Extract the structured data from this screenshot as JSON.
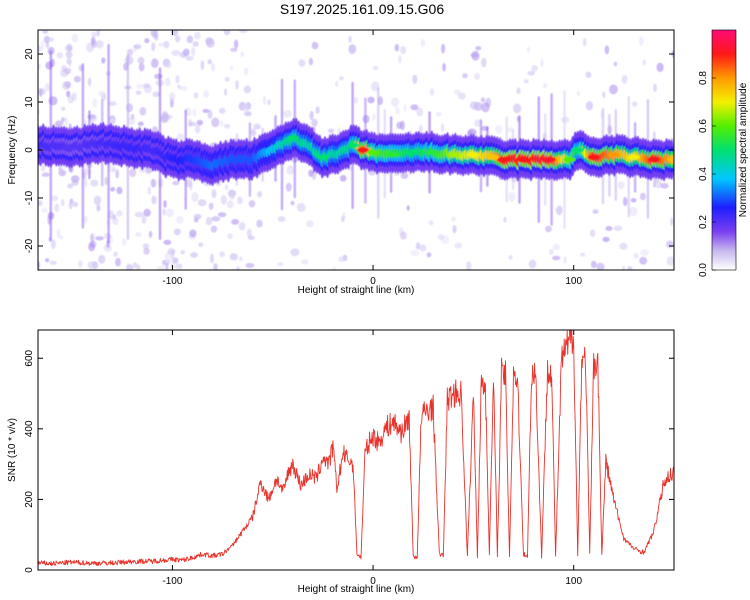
{
  "title": "S197.2025.161.09.15.G06",
  "chart_data": [
    {
      "type": "heatmap",
      "xlabel": "Height of straight line (km)",
      "ylabel": "Frequency (Hz)",
      "colorbar_label": "Normalized spectral amplitude",
      "xlim": [
        -167,
        150
      ],
      "ylim": [
        -25,
        25
      ],
      "xticks": [
        -100,
        0,
        100
      ],
      "yticks": [
        -20,
        -10,
        0,
        10,
        20
      ],
      "colorbar_ticks": [
        0.0,
        0.2,
        0.4,
        0.6,
        0.8
      ],
      "colorbar_range": [
        0,
        1
      ],
      "ridge": [
        {
          "x": -165,
          "f": 1.0,
          "a": 0.22
        },
        {
          "x": -150,
          "f": 0.5,
          "a": 0.2
        },
        {
          "x": -135,
          "f": 1.5,
          "a": 0.22
        },
        {
          "x": -120,
          "f": 0.5,
          "a": 0.24
        },
        {
          "x": -110,
          "f": 0.0,
          "a": 0.22
        },
        {
          "x": -100,
          "f": -2.0,
          "a": 0.25
        },
        {
          "x": -90,
          "f": -2.0,
          "a": 0.28
        },
        {
          "x": -80,
          "f": -3.0,
          "a": 0.32
        },
        {
          "x": -70,
          "f": -2.0,
          "a": 0.3
        },
        {
          "x": -60,
          "f": -2.0,
          "a": 0.3
        },
        {
          "x": -50,
          "f": 0.0,
          "a": 0.4
        },
        {
          "x": -40,
          "f": 2.5,
          "a": 0.5
        },
        {
          "x": -32,
          "f": 1.0,
          "a": 0.45
        },
        {
          "x": -25,
          "f": -1.5,
          "a": 0.5
        },
        {
          "x": -18,
          "f": -1.0,
          "a": 0.45
        },
        {
          "x": -10,
          "f": 1.0,
          "a": 0.5
        },
        {
          "x": -5,
          "f": 0.0,
          "a": 0.9
        },
        {
          "x": 0,
          "f": -0.5,
          "a": 0.6
        },
        {
          "x": 10,
          "f": -1.0,
          "a": 0.55
        },
        {
          "x": 20,
          "f": -0.5,
          "a": 0.5
        },
        {
          "x": 30,
          "f": -0.5,
          "a": 0.55
        },
        {
          "x": 40,
          "f": -1.0,
          "a": 0.65
        },
        {
          "x": 50,
          "f": -1.0,
          "a": 0.7
        },
        {
          "x": 60,
          "f": -1.5,
          "a": 0.75
        },
        {
          "x": 65,
          "f": -2.0,
          "a": 0.9
        },
        {
          "x": 75,
          "f": -2.0,
          "a": 0.9
        },
        {
          "x": 88,
          "f": -2.0,
          "a": 0.92
        },
        {
          "x": 98,
          "f": -2.0,
          "a": 0.6
        },
        {
          "x": 102,
          "f": 0.0,
          "a": 0.5
        },
        {
          "x": 110,
          "f": -1.5,
          "a": 0.9
        },
        {
          "x": 120,
          "f": -1.0,
          "a": 0.8
        },
        {
          "x": 130,
          "f": -1.5,
          "a": 0.7
        },
        {
          "x": 140,
          "f": -2.0,
          "a": 0.9
        },
        {
          "x": 150,
          "f": -2.0,
          "a": 0.75
        }
      ]
    },
    {
      "type": "line",
      "xlabel": "Height of straight line (km)",
      "ylabel": "SNR (10 * v/v)",
      "xlim": [
        -167,
        150
      ],
      "ylim": [
        0,
        680
      ],
      "xticks": [
        -100,
        0,
        100
      ],
      "yticks": [
        0,
        200,
        400,
        600
      ],
      "color": "#e8322a",
      "x": [
        -167,
        -160,
        -150,
        -140,
        -130,
        -120,
        -110,
        -100,
        -95,
        -90,
        -85,
        -80,
        -75,
        -70,
        -65,
        -60,
        -56,
        -52,
        -48,
        -45,
        -42,
        -40,
        -36,
        -32,
        -28,
        -25,
        -22,
        -20,
        -18,
        -15,
        -12,
        -10,
        -8,
        -6,
        -4,
        -2,
        0,
        3,
        6,
        10,
        14,
        18,
        20,
        22,
        24,
        26,
        30,
        33,
        35,
        37,
        40,
        44,
        47,
        50,
        52,
        54,
        56,
        58,
        60,
        62,
        64,
        66,
        68,
        70,
        72,
        75,
        77,
        79,
        81,
        84,
        87,
        89,
        91,
        94,
        96,
        98,
        100,
        102,
        104,
        106,
        108,
        110,
        112,
        114,
        116,
        120,
        125,
        130,
        135,
        140,
        145,
        150
      ],
      "y": [
        20,
        18,
        22,
        19,
        20,
        24,
        25,
        30,
        28,
        35,
        45,
        40,
        45,
        70,
        110,
        150,
        250,
        200,
        260,
        220,
        280,
        300,
        240,
        270,
        260,
        320,
        300,
        350,
        230,
        330,
        310,
        300,
        45,
        35,
        330,
        360,
        380,
        360,
        400,
        420,
        390,
        430,
        40,
        35,
        430,
        450,
        460,
        45,
        40,
        480,
        500,
        500,
        40,
        500,
        40,
        540,
        520,
        45,
        540,
        45,
        560,
        550,
        40,
        560,
        540,
        45,
        40,
        560,
        560,
        40,
        580,
        560,
        40,
        600,
        620,
        650,
        660,
        40,
        600,
        590,
        45,
        580,
        600,
        40,
        310,
        200,
        90,
        60,
        50,
        110,
        250,
        280
      ]
    }
  ]
}
